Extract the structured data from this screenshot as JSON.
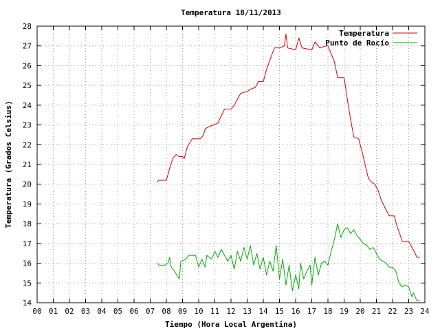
{
  "chart_data": {
    "type": "line",
    "title": "Temperatura 18/11/2013",
    "xlabel": "Tiempo (Hora Local Argentina)",
    "ylabel": "Temperatura (Grados Celsius)",
    "xlim": [
      0,
      24
    ],
    "ylim": [
      14,
      28
    ],
    "x_ticks": [
      "00",
      "01",
      "02",
      "03",
      "04",
      "05",
      "06",
      "07",
      "08",
      "09",
      "10",
      "11",
      "12",
      "13",
      "14",
      "15",
      "16",
      "17",
      "18",
      "19",
      "20",
      "21",
      "22",
      "23",
      "24"
    ],
    "y_ticks": [
      "14",
      "15",
      "16",
      "17",
      "18",
      "19",
      "20",
      "21",
      "22",
      "23",
      "24",
      "25",
      "26",
      "27",
      "28"
    ],
    "grid": true,
    "legend_position": "top-right",
    "series": [
      {
        "name": "Temperatura",
        "color": "#cc0000",
        "points": [
          [
            7.45,
            20.1
          ],
          [
            7.5,
            20.2
          ],
          [
            8.0,
            20.2
          ],
          [
            8.2,
            20.8
          ],
          [
            8.4,
            21.3
          ],
          [
            8.6,
            21.5
          ],
          [
            8.8,
            21.4
          ],
          [
            9.0,
            21.4
          ],
          [
            9.1,
            21.3
          ],
          [
            9.3,
            21.9
          ],
          [
            9.6,
            22.3
          ],
          [
            10.1,
            22.3
          ],
          [
            10.3,
            22.5
          ],
          [
            10.4,
            22.8
          ],
          [
            10.6,
            22.9
          ],
          [
            10.9,
            23.0
          ],
          [
            11.2,
            23.1
          ],
          [
            11.3,
            23.3
          ],
          [
            11.6,
            23.8
          ],
          [
            12.0,
            23.8
          ],
          [
            12.2,
            24.0
          ],
          [
            12.6,
            24.6
          ],
          [
            13.0,
            24.7
          ],
          [
            13.2,
            24.8
          ],
          [
            13.5,
            24.9
          ],
          [
            13.7,
            25.2
          ],
          [
            14.0,
            25.2
          ],
          [
            14.2,
            25.8
          ],
          [
            14.5,
            26.5
          ],
          [
            14.7,
            26.9
          ],
          [
            15.0,
            26.9
          ],
          [
            15.3,
            27.0
          ],
          [
            15.4,
            27.6
          ],
          [
            15.5,
            26.9
          ],
          [
            16.0,
            26.8
          ],
          [
            16.2,
            27.4
          ],
          [
            16.4,
            26.9
          ],
          [
            17.0,
            26.8
          ],
          [
            17.2,
            27.2
          ],
          [
            17.5,
            26.9
          ],
          [
            17.9,
            27.0
          ],
          [
            18.0,
            27.0
          ],
          [
            18.2,
            26.6
          ],
          [
            18.4,
            26.2
          ],
          [
            18.6,
            25.4
          ],
          [
            19.0,
            25.4
          ],
          [
            19.2,
            24.3
          ],
          [
            19.4,
            23.3
          ],
          [
            19.6,
            22.4
          ],
          [
            19.9,
            22.3
          ],
          [
            20.1,
            21.7
          ],
          [
            20.3,
            21.0
          ],
          [
            20.5,
            20.3
          ],
          [
            20.7,
            20.1
          ],
          [
            20.9,
            20.0
          ],
          [
            21.1,
            19.7
          ],
          [
            21.3,
            19.2
          ],
          [
            21.6,
            18.7
          ],
          [
            21.8,
            18.4
          ],
          [
            22.1,
            18.4
          ],
          [
            22.3,
            17.8
          ],
          [
            22.4,
            17.6
          ],
          [
            22.6,
            17.1
          ],
          [
            23.0,
            17.1
          ],
          [
            23.2,
            16.8
          ],
          [
            23.4,
            16.5
          ],
          [
            23.5,
            16.3
          ],
          [
            23.7,
            16.3
          ]
        ]
      },
      {
        "name": "Punto de Rocío",
        "color": "#00aa00",
        "points": [
          [
            7.45,
            16.0
          ],
          [
            7.55,
            15.9
          ],
          [
            7.9,
            15.9
          ],
          [
            8.1,
            16.0
          ],
          [
            8.2,
            16.3
          ],
          [
            8.3,
            15.8
          ],
          [
            8.5,
            15.6
          ],
          [
            8.8,
            15.2
          ],
          [
            8.9,
            16.1
          ],
          [
            9.2,
            16.2
          ],
          [
            9.4,
            16.4
          ],
          [
            9.8,
            16.4
          ],
          [
            10.0,
            15.8
          ],
          [
            10.2,
            16.2
          ],
          [
            10.4,
            15.8
          ],
          [
            10.5,
            16.4
          ],
          [
            10.8,
            16.2
          ],
          [
            11.0,
            16.6
          ],
          [
            11.2,
            16.3
          ],
          [
            11.4,
            16.7
          ],
          [
            11.6,
            16.4
          ],
          [
            11.8,
            16.1
          ],
          [
            12.0,
            16.4
          ],
          [
            12.2,
            15.7
          ],
          [
            12.4,
            16.6
          ],
          [
            12.6,
            16.1
          ],
          [
            12.8,
            16.8
          ],
          [
            13.0,
            16.2
          ],
          [
            13.2,
            16.9
          ],
          [
            13.4,
            15.9
          ],
          [
            13.6,
            16.5
          ],
          [
            13.8,
            15.7
          ],
          [
            14.0,
            16.3
          ],
          [
            14.2,
            15.4
          ],
          [
            14.4,
            16.1
          ],
          [
            14.6,
            15.6
          ],
          [
            14.8,
            16.9
          ],
          [
            15.0,
            15.2
          ],
          [
            15.2,
            16.2
          ],
          [
            15.4,
            14.9
          ],
          [
            15.6,
            15.9
          ],
          [
            15.8,
            14.6
          ],
          [
            16.0,
            15.4
          ],
          [
            16.2,
            14.7
          ],
          [
            16.3,
            16.0
          ],
          [
            16.5,
            15.2
          ],
          [
            16.7,
            15.6
          ],
          [
            16.9,
            15.9
          ],
          [
            17.0,
            14.9
          ],
          [
            17.2,
            16.3
          ],
          [
            17.4,
            15.4
          ],
          [
            17.6,
            16.0
          ],
          [
            17.8,
            16.1
          ],
          [
            18.0,
            15.9
          ],
          [
            18.2,
            16.6
          ],
          [
            18.4,
            17.2
          ],
          [
            18.6,
            18.0
          ],
          [
            18.8,
            17.3
          ],
          [
            19.0,
            17.7
          ],
          [
            19.2,
            17.8
          ],
          [
            19.4,
            17.5
          ],
          [
            19.6,
            17.7
          ],
          [
            19.8,
            17.4
          ],
          [
            20.0,
            17.2
          ],
          [
            20.2,
            17.0
          ],
          [
            20.4,
            16.9
          ],
          [
            20.6,
            16.7
          ],
          [
            20.8,
            16.8
          ],
          [
            21.0,
            16.5
          ],
          [
            21.2,
            16.2
          ],
          [
            21.4,
            16.1
          ],
          [
            21.6,
            16.0
          ],
          [
            21.8,
            15.8
          ],
          [
            22.0,
            15.8
          ],
          [
            22.2,
            15.6
          ],
          [
            22.4,
            15.0
          ],
          [
            22.6,
            14.8
          ],
          [
            22.8,
            14.9
          ],
          [
            23.0,
            14.8
          ],
          [
            23.2,
            14.3
          ],
          [
            23.3,
            14.5
          ],
          [
            23.5,
            14.1
          ],
          [
            23.7,
            14.1
          ]
        ]
      }
    ]
  }
}
